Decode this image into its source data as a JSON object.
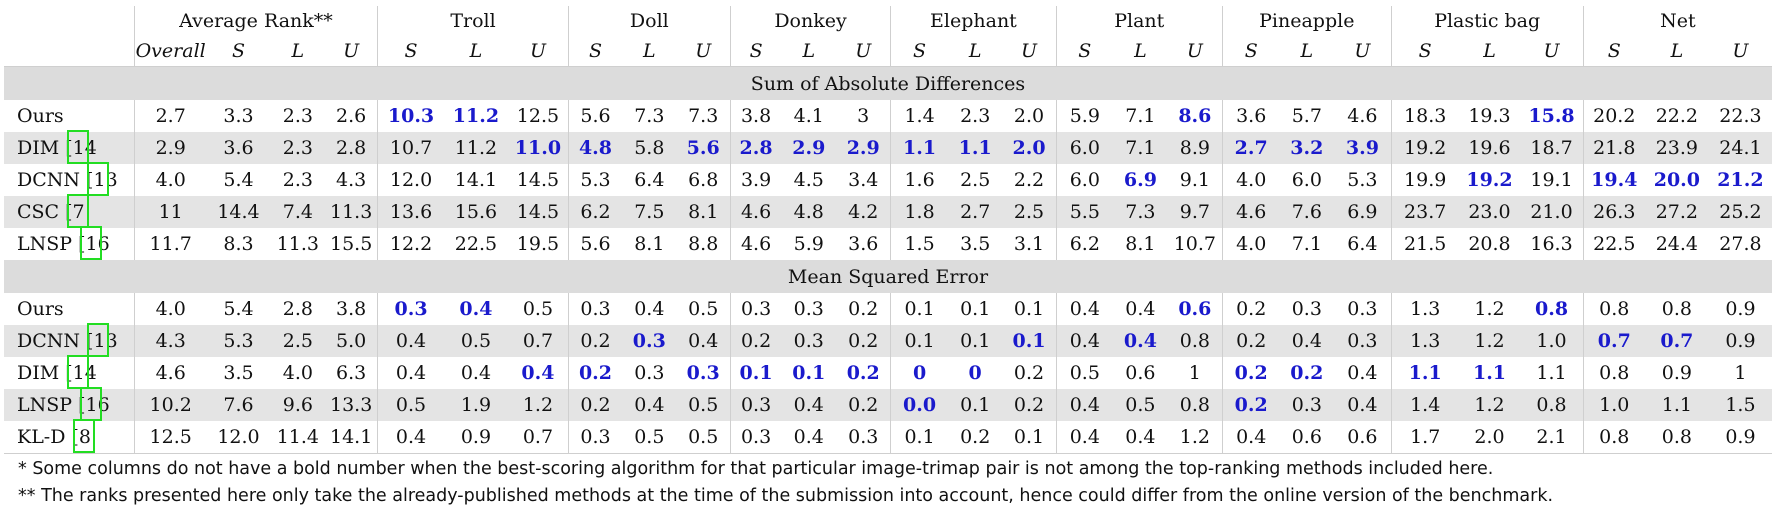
{
  "groups": [
    "Average Rank**",
    "Troll",
    "Doll",
    "Donkey",
    "Elephant",
    "Plant",
    "Pineapple",
    "Plastic bag",
    "Net"
  ],
  "subheaders": {
    "rank": [
      "Overall",
      "S",
      "L",
      "U"
    ],
    "image": [
      "S",
      "L",
      "U"
    ]
  },
  "sections": [
    {
      "title": "Sum of Absolute Differences",
      "rows": [
        {
          "name": "Ours",
          "ref": "",
          "values": [
            "2.7",
            "3.3",
            "2.3",
            "2.6",
            "10.3",
            "11.2",
            "12.5",
            "5.6",
            "7.3",
            "7.3",
            "3.8",
            "4.1",
            "3",
            "1.4",
            "2.3",
            "2.0",
            "5.9",
            "7.1",
            "8.6",
            "3.6",
            "5.7",
            "4.6",
            "18.3",
            "19.3",
            "15.8",
            "20.2",
            "22.2",
            "22.3"
          ],
          "best": [
            4,
            5,
            18,
            24
          ]
        },
        {
          "name": "DIM [",
          "ref": "14",
          "values": [
            "2.9",
            "3.6",
            "2.3",
            "2.8",
            "10.7",
            "11.2",
            "11.0",
            "4.8",
            "5.8",
            "5.6",
            "2.8",
            "2.9",
            "2.9",
            "1.1",
            "1.1",
            "2.0",
            "6.0",
            "7.1",
            "8.9",
            "2.7",
            "3.2",
            "3.9",
            "19.2",
            "19.6",
            "18.7",
            "21.8",
            "23.9",
            "24.1"
          ],
          "best": [
            6,
            7,
            9,
            10,
            11,
            12,
            13,
            14,
            15,
            19,
            20,
            21
          ]
        },
        {
          "name": "DCNN [",
          "ref": "13",
          "values": [
            "4.0",
            "5.4",
            "2.3",
            "4.3",
            "12.0",
            "14.1",
            "14.5",
            "5.3",
            "6.4",
            "6.8",
            "3.9",
            "4.5",
            "3.4",
            "1.6",
            "2.5",
            "2.2",
            "6.0",
            "6.9",
            "9.1",
            "4.0",
            "6.0",
            "5.3",
            "19.9",
            "19.2",
            "19.1",
            "19.4",
            "20.0",
            "21.2"
          ],
          "best": [
            17,
            23,
            25,
            26,
            27
          ]
        },
        {
          "name": "CSC [",
          "ref": "7",
          "values": [
            "11",
            "14.4",
            "7.4",
            "11.3",
            "13.6",
            "15.6",
            "14.5",
            "6.2",
            "7.5",
            "8.1",
            "4.6",
            "4.8",
            "4.2",
            "1.8",
            "2.7",
            "2.5",
            "5.5",
            "7.3",
            "9.7",
            "4.6",
            "7.6",
            "6.9",
            "23.7",
            "23.0",
            "21.0",
            "26.3",
            "27.2",
            "25.2"
          ],
          "best": []
        },
        {
          "name": "LNSP [",
          "ref": "16",
          "values": [
            "11.7",
            "8.3",
            "11.3",
            "15.5",
            "12.2",
            "22.5",
            "19.5",
            "5.6",
            "8.1",
            "8.8",
            "4.6",
            "5.9",
            "3.6",
            "1.5",
            "3.5",
            "3.1",
            "6.2",
            "8.1",
            "10.7",
            "4.0",
            "7.1",
            "6.4",
            "21.5",
            "20.8",
            "16.3",
            "22.5",
            "24.4",
            "27.8"
          ],
          "best": []
        }
      ]
    },
    {
      "title": "Mean Squared Error",
      "rows": [
        {
          "name": "Ours",
          "ref": "",
          "values": [
            "4.0",
            "5.4",
            "2.8",
            "3.8",
            "0.3",
            "0.4",
            "0.5",
            "0.3",
            "0.4",
            "0.5",
            "0.3",
            "0.3",
            "0.2",
            "0.1",
            "0.1",
            "0.1",
            "0.4",
            "0.4",
            "0.6",
            "0.2",
            "0.3",
            "0.3",
            "1.3",
            "1.2",
            "0.8",
            "0.8",
            "0.8",
            "0.9"
          ],
          "best": [
            4,
            5,
            18,
            24
          ]
        },
        {
          "name": "DCNN [",
          "ref": "13",
          "values": [
            "4.3",
            "5.3",
            "2.5",
            "5.0",
            "0.4",
            "0.5",
            "0.7",
            "0.2",
            "0.3",
            "0.4",
            "0.2",
            "0.3",
            "0.2",
            "0.1",
            "0.1",
            "0.1",
            "0.4",
            "0.4",
            "0.8",
            "0.2",
            "0.4",
            "0.3",
            "1.3",
            "1.2",
            "1.0",
            "0.7",
            "0.7",
            "0.9"
          ],
          "best": [
            8,
            15,
            17,
            25,
            26
          ]
        },
        {
          "name": "DIM [",
          "ref": "14",
          "values": [
            "4.6",
            "3.5",
            "4.0",
            "6.3",
            "0.4",
            "0.4",
            "0.4",
            "0.2",
            "0.3",
            "0.3",
            "0.1",
            "0.1",
            "0.2",
            "0",
            "0",
            "0.2",
            "0.5",
            "0.6",
            "1",
            "0.2",
            "0.2",
            "0.4",
            "1.1",
            "1.1",
            "1.1",
            "0.8",
            "0.9",
            "1"
          ],
          "best": [
            6,
            7,
            9,
            10,
            11,
            12,
            13,
            14,
            19,
            20,
            22,
            23
          ]
        },
        {
          "name": "LNSP [",
          "ref": "16",
          "values": [
            "10.2",
            "7.6",
            "9.6",
            "13.3",
            "0.5",
            "1.9",
            "1.2",
            "0.2",
            "0.4",
            "0.5",
            "0.3",
            "0.4",
            "0.2",
            "0.0",
            "0.1",
            "0.2",
            "0.4",
            "0.5",
            "0.8",
            "0.2",
            "0.3",
            "0.4",
            "1.4",
            "1.2",
            "0.8",
            "1.0",
            "1.1",
            "1.5"
          ],
          "best": [
            13,
            19
          ]
        },
        {
          "name": "KL-D [",
          "ref": "8",
          "values": [
            "12.5",
            "12.0",
            "11.4",
            "14.1",
            "0.4",
            "0.9",
            "0.7",
            "0.3",
            "0.5",
            "0.5",
            "0.3",
            "0.4",
            "0.3",
            "0.1",
            "0.2",
            "0.1",
            "0.4",
            "0.4",
            "1.2",
            "0.4",
            "0.6",
            "0.6",
            "1.7",
            "2.0",
            "2.1",
            "0.8",
            "0.8",
            "0.9"
          ],
          "best": []
        }
      ]
    }
  ],
  "footnotes": [
    "* Some columns do not have a bold number when the best-scoring algorithm for that particular image-trimap pair is not among the top-ranking methods included here.",
    "** The ranks presented here only take the already-published methods at the time of the submission into account, hence could differ from the online version of the benchmark."
  ],
  "colors": {
    "best": "#1a1acc",
    "highlight_box": "#22dd22",
    "shaded_row": "#e4e4e4",
    "section_band": "#dcdcdc"
  }
}
